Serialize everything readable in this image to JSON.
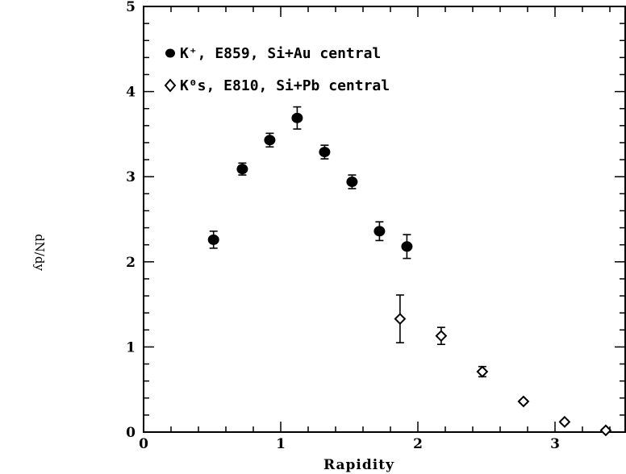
{
  "chart_data": {
    "type": "scatter",
    "xlabel": "Rapidity",
    "ylabel": "dN/dy",
    "xlim": [
      0,
      3.4
    ],
    "ylim": [
      0,
      5
    ],
    "x_ticks": [
      "0",
      "1",
      "2",
      "3"
    ],
    "y_ticks": [
      "0",
      "1",
      "2",
      "3",
      "4",
      "5"
    ],
    "legend_position": "top-left",
    "grid": false,
    "series": [
      {
        "name": "K⁺, E859, Si+Au central",
        "marker": "filled-circle",
        "color": "#000000",
        "points": [
          {
            "x": 0.51,
            "y": 2.26,
            "err": 0.1
          },
          {
            "x": 0.72,
            "y": 3.09,
            "err": 0.07
          },
          {
            "x": 0.92,
            "y": 3.43,
            "err": 0.08
          },
          {
            "x": 1.12,
            "y": 3.69,
            "err": 0.13
          },
          {
            "x": 1.32,
            "y": 3.29,
            "err": 0.08
          },
          {
            "x": 1.52,
            "y": 2.94,
            "err": 0.08
          },
          {
            "x": 1.72,
            "y": 2.36,
            "err": 0.11
          },
          {
            "x": 1.92,
            "y": 2.18,
            "err": 0.14
          }
        ]
      },
      {
        "name": "K⁰s, E810, Si+Pb central",
        "marker": "open-diamond",
        "color": "#000000",
        "points": [
          {
            "x": 1.87,
            "y": 1.33,
            "err": 0.28
          },
          {
            "x": 2.17,
            "y": 1.13,
            "err": 0.1
          },
          {
            "x": 2.47,
            "y": 0.71,
            "err": 0.06
          },
          {
            "x": 2.77,
            "y": 0.36,
            "err": 0.02
          },
          {
            "x": 3.07,
            "y": 0.12,
            "err": 0.02
          },
          {
            "x": 3.37,
            "y": 0.02,
            "err": 0.02
          }
        ]
      }
    ]
  }
}
